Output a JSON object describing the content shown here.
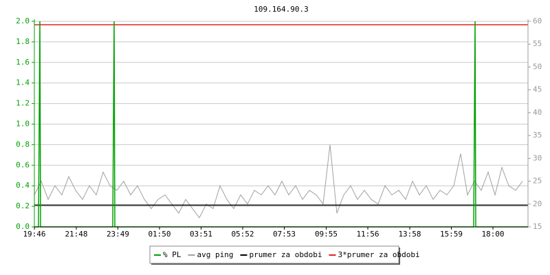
{
  "chart_data": {
    "type": "line",
    "title": "109.164.90.3",
    "xlim": [
      0,
      1436
    ],
    "xticks": [
      {
        "value": 0,
        "label": "19:46"
      },
      {
        "value": 122,
        "label": "21:48"
      },
      {
        "value": 243,
        "label": "23:49"
      },
      {
        "value": 364,
        "label": "01:50"
      },
      {
        "value": 485,
        "label": "03:51"
      },
      {
        "value": 606,
        "label": "05:52"
      },
      {
        "value": 727,
        "label": "07:53"
      },
      {
        "value": 849,
        "label": "09:55"
      },
      {
        "value": 970,
        "label": "11:56"
      },
      {
        "value": 1092,
        "label": "13:58"
      },
      {
        "value": 1213,
        "label": "15:59"
      },
      {
        "value": 1334,
        "label": "18:00"
      }
    ],
    "ylim": [
      0,
      2
    ],
    "yticks": [
      {
        "value": 0,
        "label": "0.0"
      },
      0.2,
      0.4,
      0.6,
      0.8,
      {
        "value": 1,
        "label": "1.0"
      },
      1.2,
      1.4,
      1.6,
      1.8,
      {
        "value": 2,
        "label": "2.0"
      }
    ],
    "y2lim": [
      15,
      60
    ],
    "y2ticks": [
      15,
      20,
      25,
      30,
      35,
      40,
      45,
      50,
      55,
      60
    ],
    "grid": true,
    "series": [
      {
        "name": "% PL",
        "color": "#00a000",
        "axis": "y",
        "x": [
          0,
          12,
          14,
          16,
          18,
          228,
          230,
          232,
          234,
          1278,
          1280,
          1282,
          1284,
          1436
        ],
        "values": [
          0,
          0,
          1,
          2,
          0,
          0,
          1,
          2,
          0,
          0,
          1,
          2,
          0,
          0
        ]
      },
      {
        "name": "avg ping",
        "color": "#a0a0a0",
        "axis": "y2",
        "x": [
          0,
          20,
          40,
          60,
          80,
          100,
          120,
          140,
          160,
          180,
          200,
          220,
          240,
          260,
          280,
          300,
          320,
          340,
          360,
          380,
          400,
          420,
          440,
          460,
          480,
          500,
          520,
          540,
          560,
          580,
          600,
          620,
          640,
          660,
          680,
          700,
          720,
          740,
          760,
          780,
          800,
          820,
          840,
          860,
          880,
          900,
          920,
          940,
          960,
          980,
          1000,
          1020,
          1040,
          1060,
          1080,
          1100,
          1120,
          1140,
          1160,
          1180,
          1200,
          1220,
          1240,
          1260,
          1280,
          1300,
          1320,
          1340,
          1360,
          1380,
          1400,
          1420
        ],
        "values": [
          22,
          25,
          21,
          24,
          22,
          26,
          23,
          21,
          24,
          22,
          27,
          24,
          23,
          25,
          22,
          24,
          21,
          19,
          21,
          22,
          20,
          18,
          21,
          19,
          17,
          20,
          19,
          24,
          21,
          19,
          22,
          20,
          23,
          22,
          24,
          22,
          25,
          22,
          24,
          21,
          23,
          22,
          20,
          33,
          18,
          22,
          24,
          21,
          23,
          21,
          20,
          24,
          22,
          23,
          21,
          25,
          22,
          24,
          21,
          23,
          22,
          24,
          31,
          22,
          25,
          23,
          27,
          22,
          28,
          24,
          23,
          25
        ]
      },
      {
        "name": "prumer za obdobi",
        "color": "#000000",
        "axis": "y2",
        "x": [
          0,
          1436
        ],
        "values": [
          19.75,
          19.75
        ]
      },
      {
        "name": "3*prumer za obdobi",
        "color": "#e02020",
        "axis": "y2",
        "x": [
          0,
          1436
        ],
        "values": [
          59.25,
          59.25
        ]
      }
    ]
  }
}
